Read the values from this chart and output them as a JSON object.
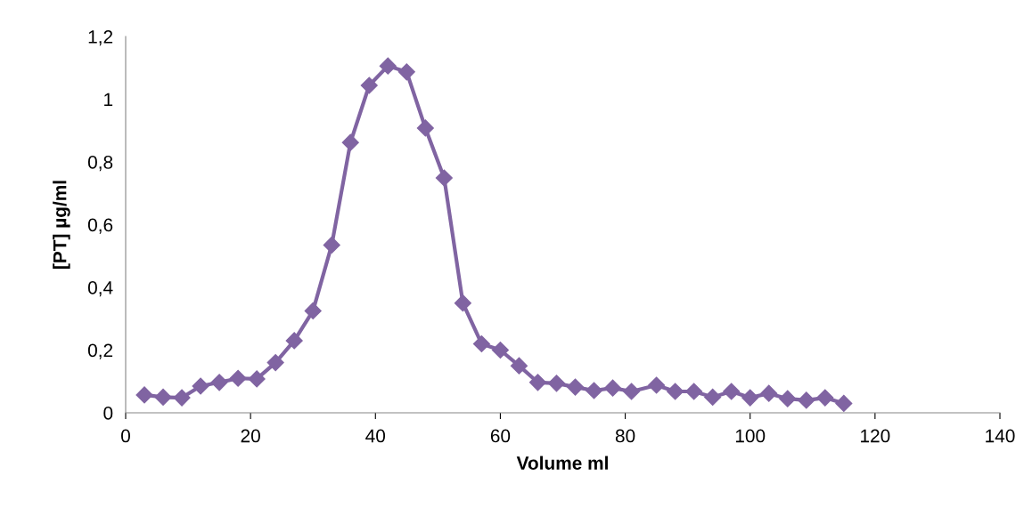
{
  "chart_data": {
    "type": "line",
    "xlabel": "Volume ml",
    "ylabel": "[PT] µg/ml",
    "x": [
      3,
      6,
      9,
      12,
      15,
      18,
      21,
      24,
      27,
      30,
      33,
      36,
      39,
      42,
      45,
      48,
      51,
      54,
      57,
      60,
      63,
      66,
      69,
      72,
      75,
      78,
      81,
      85,
      88,
      91,
      94,
      97,
      100,
      103,
      106,
      109,
      112,
      115
    ],
    "series": [
      {
        "color": "#8064a2",
        "values": [
          0.057,
          0.05,
          0.048,
          0.085,
          0.097,
          0.11,
          0.108,
          0.16,
          0.23,
          0.325,
          0.535,
          0.862,
          1.044,
          1.106,
          1.087,
          0.908,
          0.749,
          0.35,
          0.22,
          0.2,
          0.15,
          0.097,
          0.094,
          0.082,
          0.071,
          0.079,
          0.068,
          0.088,
          0.068,
          0.068,
          0.05,
          0.068,
          0.048,
          0.062,
          0.045,
          0.04,
          0.048,
          0.03
        ]
      }
    ],
    "xlim": [
      0,
      140
    ],
    "xticks": [
      0,
      20,
      40,
      60,
      80,
      100,
      120,
      140
    ],
    "ylim": [
      0,
      1.2
    ],
    "yticks": [
      0,
      {
        "value": 0.2,
        "label": "0,2"
      },
      {
        "value": 0.4,
        "label": "0,4"
      },
      {
        "value": 0.6,
        "label": "0,6"
      },
      {
        "value": 0.8,
        "label": "0,8"
      },
      1,
      {
        "value": 1.2,
        "label": "1,2"
      }
    ],
    "marker": "diamond",
    "line_style": "solid",
    "grid": false
  }
}
